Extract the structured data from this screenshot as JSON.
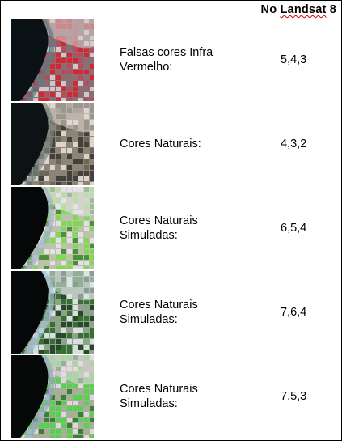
{
  "header": {
    "prefix": "No ",
    "highlight": "Landsat",
    "suffix": " 8"
  },
  "rows": [
    {
      "label": "Falsas cores Infra Vermelho:",
      "code": "5,4,3",
      "theme": "infrared",
      "colors": {
        "water": "#0b1216",
        "base": "#8a6e74",
        "field": "#d8202c",
        "field2": "#b84a5a",
        "light": "#d6d2cf",
        "shore": "#5d7a80"
      }
    },
    {
      "label": "Cores Naturais:",
      "code": "4,3,2",
      "theme": "natural",
      "colors": {
        "water": "#0d1214",
        "base": "#8d8478",
        "field": "#3b3a34",
        "field2": "#6b6357",
        "light": "#e4dcd3",
        "shore": "#7a8782"
      }
    },
    {
      "label": "Cores Naturais Simuladas:",
      "code": "6,5,4",
      "theme": "sim-a",
      "colors": {
        "water": "#050708",
        "base": "#b9c4a8",
        "field": "#7cd94a",
        "field2": "#3f8a2f",
        "light": "#e8e2ea",
        "shore": "#9fb0c8"
      }
    },
    {
      "label": "Cores Naturais Simuladas:",
      "code": "7,6,4",
      "theme": "sim-b",
      "colors": {
        "water": "#050708",
        "base": "#8fa28a",
        "field": "#2f6a2a",
        "field2": "#1e3d1f",
        "light": "#dfe6ea",
        "shore": "#a7c2d6"
      }
    },
    {
      "label": "Cores Naturais Simuladas:",
      "code": "7,5,3",
      "theme": "sim-c",
      "colors": {
        "water": "#060808",
        "base": "#a6b098",
        "field": "#52d44a",
        "field2": "#2d7a2b",
        "light": "#e6dce6",
        "shore": "#8ea8b8"
      }
    }
  ]
}
